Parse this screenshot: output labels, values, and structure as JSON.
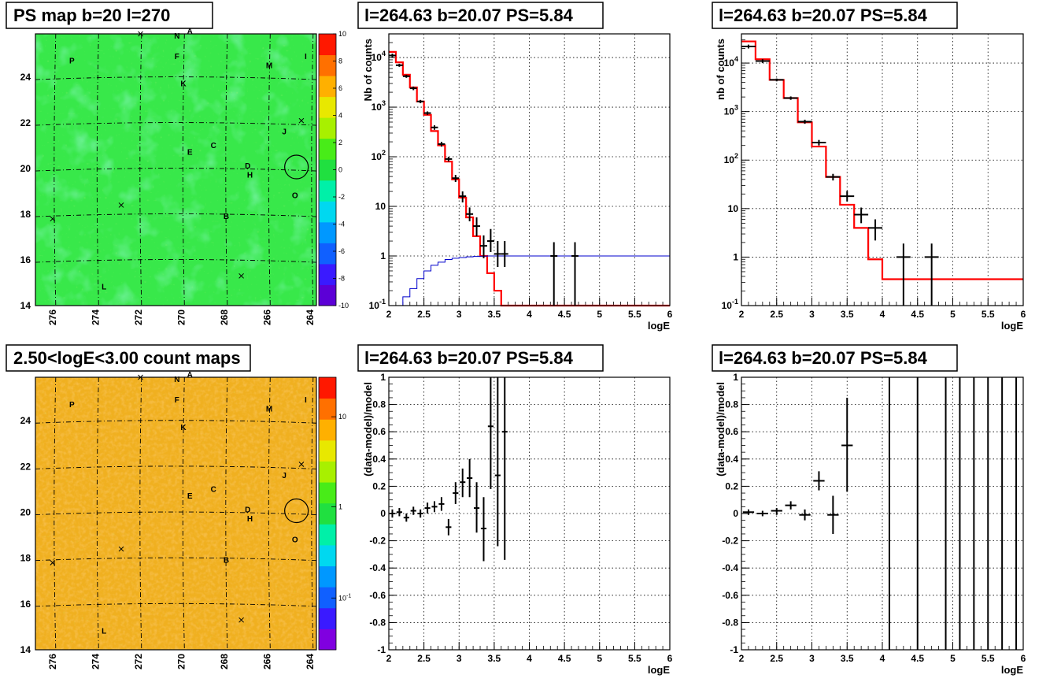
{
  "colors": {
    "model": "#ff0000",
    "exposure": "#0000cc",
    "data": "#000000"
  },
  "panels": {
    "p1": {
      "title": "PS map b=20 l=270"
    },
    "p2": {
      "title": "l=264.63 b=20.07 PS=5.84"
    },
    "p3": {
      "title": "l=264.63 b=20.07 PS=5.84"
    },
    "p4": {
      "title": "2.50<logE<3.00 count maps"
    },
    "p5": {
      "title": "l=264.63 b=20.07 PS=5.84"
    },
    "p6": {
      "title": "l=264.63 b=20.07 PS=5.84"
    }
  },
  "chart_data": [
    {
      "id": "p1",
      "type": "heatmap",
      "title": "PS map b=20 l=270",
      "x_ticks": [
        "276",
        "274",
        "272",
        "270",
        "268",
        "266",
        "264"
      ],
      "y_ticks": [
        "14",
        "16",
        "18",
        "20",
        "22",
        "24"
      ],
      "xlim": [
        276.8,
        263.7
      ],
      "ylim": [
        14,
        25.9
      ],
      "colorbar": {
        "scale": "linear",
        "range": [
          -10,
          10
        ],
        "ticks": [
          "10",
          "8",
          "6",
          "4",
          "2",
          "0",
          "-2",
          "-4",
          "-6",
          "-8",
          "-10"
        ],
        "palette": [
          "#5c00d6",
          "#3a1aff",
          "#1060ff",
          "#0098ff",
          "#00d8f0",
          "#00f0a8",
          "#20e040",
          "#48ec18",
          "#a8f000",
          "#e8e800",
          "#ffb000",
          "#ff7000",
          "#ff1800"
        ]
      },
      "sources": [
        {
          "name": "A",
          "l": 269.6,
          "b": 25.9
        },
        {
          "name": "N",
          "l": 270.2,
          "b": 25.7
        },
        {
          "name": "F",
          "l": 270.2,
          "b": 24.8
        },
        {
          "name": "P",
          "l": 275.1,
          "b": 24.6
        },
        {
          "name": "M",
          "l": 265.9,
          "b": 24.4
        },
        {
          "name": "I",
          "l": 264.2,
          "b": 24.8
        },
        {
          "name": "K",
          "l": 269.9,
          "b": 23.6
        },
        {
          "name": "J",
          "l": 265.2,
          "b": 21.5
        },
        {
          "name": "C",
          "l": 268.5,
          "b": 20.9
        },
        {
          "name": "E",
          "l": 269.6,
          "b": 20.6
        },
        {
          "name": "D",
          "l": 266.9,
          "b": 20.0
        },
        {
          "name": "H",
          "l": 266.8,
          "b": 19.6
        },
        {
          "name": "O",
          "l": 264.7,
          "b": 18.7
        },
        {
          "name": "B",
          "l": 267.9,
          "b": 17.8
        },
        {
          "name": "L",
          "l": 273.6,
          "b": 14.7
        }
      ],
      "crosses": [
        {
          "l": 271.9,
          "b": 25.9
        },
        {
          "l": 264.4,
          "b": 22.1
        },
        {
          "l": 272.8,
          "b": 18.4
        },
        {
          "l": 276.0,
          "b": 17.8
        },
        {
          "l": 267.2,
          "b": 15.3
        }
      ],
      "circle": {
        "l": 264.63,
        "b": 20.07
      }
    },
    {
      "id": "p2",
      "type": "line",
      "title": "l=264.63 b=20.07 PS=5.84",
      "xlabel": "logE",
      "ylabel": "Nb of counts",
      "xlim": [
        2,
        6
      ],
      "ylim": [
        0.1,
        30000
      ],
      "yscale": "log",
      "x_ticks": [
        "2",
        "2.5",
        "3",
        "3.5",
        "4",
        "4.5",
        "5",
        "5.5",
        "6"
      ],
      "y_ticks": [
        {
          "v": 0.1,
          "label": "10^-1"
        },
        {
          "v": 1,
          "label": "1"
        },
        {
          "v": 10,
          "label": "10"
        },
        {
          "v": 100,
          "label": "10^2"
        },
        {
          "v": 1000,
          "label": "10^3"
        },
        {
          "v": 10000,
          "label": "10^4"
        }
      ],
      "series": [
        {
          "role": "model",
          "edges": [
            2.0,
            2.1,
            2.2,
            2.3,
            2.4,
            2.5,
            2.6,
            2.7,
            2.8,
            2.9,
            3.0,
            3.1,
            3.2,
            3.3,
            3.4,
            3.5,
            3.6,
            3.7,
            3.8,
            3.9,
            4.0,
            4.1,
            6.0
          ],
          "values": [
            13000,
            8000,
            4500,
            2500,
            1300,
            700,
            330,
            170,
            80,
            35,
            15,
            6,
            2.5,
            1,
            0.45,
            0.2,
            0.1,
            0.1,
            0.1,
            0.1,
            0.1,
            0.1
          ]
        },
        {
          "role": "exposure",
          "edges": [
            2.0,
            2.1,
            2.2,
            2.3,
            2.4,
            2.5,
            2.6,
            2.7,
            2.8,
            2.9,
            3.0,
            3.1,
            3.2,
            3.3,
            3.4,
            3.5,
            3.6,
            3.7,
            3.8,
            3.9,
            4.0,
            6.0
          ],
          "values": [
            0.08,
            0.1,
            0.15,
            0.22,
            0.35,
            0.5,
            0.65,
            0.75,
            0.85,
            0.9,
            0.93,
            0.96,
            0.98,
            0.99,
            1,
            1,
            1,
            1,
            1,
            1,
            1
          ]
        },
        {
          "role": "data",
          "points": [
            {
              "x": 2.05,
              "y": 11000,
              "xe": 0.05,
              "lo": 10000,
              "hi": 12000
            },
            {
              "x": 2.15,
              "y": 7000,
              "xe": 0.05,
              "lo": 6500,
              "hi": 7500
            },
            {
              "x": 2.25,
              "y": 4200,
              "xe": 0.05,
              "lo": 3900,
              "hi": 4500
            },
            {
              "x": 2.35,
              "y": 2400,
              "xe": 0.05,
              "lo": 2200,
              "hi": 2600
            },
            {
              "x": 2.45,
              "y": 1300,
              "xe": 0.05,
              "lo": 1200,
              "hi": 1400
            },
            {
              "x": 2.55,
              "y": 760,
              "xe": 0.05,
              "lo": 700,
              "hi": 820
            },
            {
              "x": 2.65,
              "y": 390,
              "xe": 0.05,
              "lo": 350,
              "hi": 430
            },
            {
              "x": 2.75,
              "y": 180,
              "xe": 0.05,
              "lo": 160,
              "hi": 200
            },
            {
              "x": 2.85,
              "y": 90,
              "xe": 0.05,
              "lo": 80,
              "hi": 100
            },
            {
              "x": 2.95,
              "y": 37,
              "xe": 0.05,
              "lo": 31,
              "hi": 43
            },
            {
              "x": 3.05,
              "y": 16,
              "xe": 0.05,
              "lo": 12,
              "hi": 20
            },
            {
              "x": 3.15,
              "y": 7,
              "xe": 0.05,
              "lo": 5,
              "hi": 9.5
            },
            {
              "x": 3.25,
              "y": 4,
              "xe": 0.05,
              "lo": 2.5,
              "hi": 6
            },
            {
              "x": 3.35,
              "y": 1.6,
              "xe": 0.05,
              "lo": 0.9,
              "hi": 2.6
            },
            {
              "x": 3.45,
              "y": 2,
              "xe": 0.05,
              "lo": 1.2,
              "hi": 3.5
            },
            {
              "x": 3.55,
              "y": 1.1,
              "xe": 0.05,
              "lo": 0.6,
              "hi": 2
            },
            {
              "x": 3.65,
              "y": 1.1,
              "xe": 0.05,
              "lo": 0.6,
              "hi": 2
            },
            {
              "x": 4.35,
              "y": 1,
              "xe": 0.05,
              "lo": 0.1,
              "hi": 1.9
            },
            {
              "x": 4.65,
              "y": 1,
              "xe": 0.05,
              "lo": 0.1,
              "hi": 1.9
            }
          ]
        }
      ]
    },
    {
      "id": "p3",
      "type": "line",
      "title": "l=264.63 b=20.07 PS=5.84",
      "xlabel": "logE",
      "ylabel": "nb of counts",
      "xlim": [
        2,
        6
      ],
      "ylim": [
        0.1,
        40000
      ],
      "yscale": "log",
      "x_ticks": [
        "2",
        "2.5",
        "3",
        "3.5",
        "4",
        "4.5",
        "5",
        "5.5",
        "6"
      ],
      "y_ticks": [
        {
          "v": 0.1,
          "label": "10^-1"
        },
        {
          "v": 1,
          "label": "1"
        },
        {
          "v": 10,
          "label": "10"
        },
        {
          "v": 100,
          "label": "10^2"
        },
        {
          "v": 1000,
          "label": "10^3"
        },
        {
          "v": 10000,
          "label": "10^4"
        }
      ],
      "series": [
        {
          "role": "model",
          "edges": [
            2.0,
            2.2,
            2.4,
            2.6,
            2.8,
            3.0,
            3.2,
            3.4,
            3.6,
            3.8,
            4.0,
            6.0
          ],
          "values": [
            28000,
            12000,
            4500,
            1900,
            600,
            190,
            45,
            12,
            4,
            0.9,
            0.35
          ]
        },
        {
          "role": "data",
          "points": [
            {
              "x": 2.1,
              "y": 22000,
              "xe": 0.1,
              "lo": 20000,
              "hi": 24000
            },
            {
              "x": 2.3,
              "y": 11000,
              "xe": 0.1,
              "lo": 10000,
              "hi": 12000
            },
            {
              "x": 2.5,
              "y": 4500,
              "xe": 0.1,
              "lo": 4200,
              "hi": 4800
            },
            {
              "x": 2.7,
              "y": 1900,
              "xe": 0.1,
              "lo": 1750,
              "hi": 2050
            },
            {
              "x": 2.9,
              "y": 620,
              "xe": 0.1,
              "lo": 560,
              "hi": 680
            },
            {
              "x": 3.1,
              "y": 230,
              "xe": 0.1,
              "lo": 200,
              "hi": 260
            },
            {
              "x": 3.3,
              "y": 45,
              "xe": 0.1,
              "lo": 38,
              "hi": 52
            },
            {
              "x": 3.5,
              "y": 18,
              "xe": 0.1,
              "lo": 14,
              "hi": 23
            },
            {
              "x": 3.7,
              "y": 7.5,
              "xe": 0.1,
              "lo": 5,
              "hi": 10.5
            },
            {
              "x": 3.9,
              "y": 4,
              "xe": 0.1,
              "lo": 2.2,
              "hi": 6
            },
            {
              "x": 4.3,
              "y": 1,
              "xe": 0.1,
              "lo": 0.1,
              "hi": 1.9
            },
            {
              "x": 4.7,
              "y": 1,
              "xe": 0.1,
              "lo": 0.1,
              "hi": 1.9
            }
          ]
        }
      ]
    },
    {
      "id": "p4",
      "type": "heatmap",
      "title": "2.50<logE<3.00 count maps",
      "x_ticks": [
        "276",
        "274",
        "272",
        "270",
        "268",
        "266",
        "264"
      ],
      "y_ticks": [
        "14",
        "16",
        "18",
        "20",
        "22",
        "24"
      ],
      "xlim": [
        276.8,
        263.7
      ],
      "ylim": [
        14,
        25.9
      ],
      "colorbar": {
        "scale": "log",
        "ticks": [
          "10",
          "1",
          "10^-1"
        ],
        "palette": [
          "#8000e0",
          "#3a1aff",
          "#1060ff",
          "#0098ff",
          "#00d8f0",
          "#00f0a8",
          "#20e040",
          "#48ec18",
          "#a8f000",
          "#e8e800",
          "#ffb000",
          "#ff7000",
          "#ff1800"
        ]
      },
      "sources_ref": "p1"
    },
    {
      "id": "p5",
      "type": "scatter",
      "title": "l=264.63 b=20.07 PS=5.84",
      "xlabel": "logE",
      "ylabel": "(data-model)/model",
      "xlim": [
        2,
        6
      ],
      "ylim": [
        -1,
        1
      ],
      "x_ticks": [
        "2",
        "2.5",
        "3",
        "3.5",
        "4",
        "4.5",
        "5",
        "5.5",
        "6"
      ],
      "y_ticks": [
        "-1",
        "-0.8",
        "-0.6",
        "-0.4",
        "-0.2",
        "0",
        "0.2",
        "0.4",
        "0.6",
        "0.8",
        "1"
      ],
      "series": [
        {
          "role": "data",
          "points": [
            {
              "x": 2.05,
              "y": 0.0,
              "xe": 0.04,
              "lo": -0.03,
              "hi": 0.03
            },
            {
              "x": 2.15,
              "y": 0.01,
              "xe": 0.04,
              "lo": -0.02,
              "hi": 0.04
            },
            {
              "x": 2.25,
              "y": -0.03,
              "xe": 0.04,
              "lo": -0.06,
              "hi": 0.0
            },
            {
              "x": 2.35,
              "y": 0.02,
              "xe": 0.04,
              "lo": -0.01,
              "hi": 0.05
            },
            {
              "x": 2.45,
              "y": 0.0,
              "xe": 0.04,
              "lo": -0.03,
              "hi": 0.03
            },
            {
              "x": 2.55,
              "y": 0.04,
              "xe": 0.04,
              "lo": 0.0,
              "hi": 0.08
            },
            {
              "x": 2.65,
              "y": 0.05,
              "xe": 0.04,
              "lo": 0.01,
              "hi": 0.09
            },
            {
              "x": 2.75,
              "y": 0.07,
              "xe": 0.04,
              "lo": 0.02,
              "hi": 0.12
            },
            {
              "x": 2.85,
              "y": -0.1,
              "xe": 0.04,
              "lo": -0.16,
              "hi": -0.04
            },
            {
              "x": 2.95,
              "y": 0.15,
              "xe": 0.04,
              "lo": 0.07,
              "hi": 0.23
            },
            {
              "x": 3.05,
              "y": 0.23,
              "xe": 0.04,
              "lo": 0.12,
              "hi": 0.33
            },
            {
              "x": 3.15,
              "y": 0.26,
              "xe": 0.04,
              "lo": 0.12,
              "hi": 0.4
            },
            {
              "x": 3.25,
              "y": 0.04,
              "xe": 0.04,
              "lo": -0.14,
              "hi": 0.23
            },
            {
              "x": 3.35,
              "y": -0.11,
              "xe": 0.04,
              "lo": -0.35,
              "hi": 0.12
            },
            {
              "x": 3.45,
              "y": 0.64,
              "xe": 0.04,
              "lo": 0.18,
              "hi": 1.0
            },
            {
              "x": 3.55,
              "y": 0.28,
              "xe": 0.04,
              "lo": -0.24,
              "hi": 1.0
            },
            {
              "x": 3.65,
              "y": 0.6,
              "xe": 0.04,
              "lo": -0.34,
              "hi": 1.0
            }
          ]
        }
      ]
    },
    {
      "id": "p6",
      "type": "scatter",
      "title": "l=264.63 b=20.07 PS=5.84",
      "xlabel": "logE",
      "ylabel": "(data-model)/model",
      "xlim": [
        2,
        6
      ],
      "ylim": [
        -1,
        1
      ],
      "x_ticks": [
        "2",
        "2.5",
        "3",
        "3.5",
        "4",
        "4.5",
        "5",
        "5.5",
        "6"
      ],
      "y_ticks": [
        "-1",
        "-0.8",
        "-0.6",
        "-0.4",
        "-0.2",
        "0",
        "0.2",
        "0.4",
        "0.6",
        "0.8",
        "1"
      ],
      "series": [
        {
          "role": "data",
          "points": [
            {
              "x": 2.1,
              "y": 0.01,
              "xe": 0.08,
              "lo": -0.01,
              "hi": 0.03
            },
            {
              "x": 2.3,
              "y": 0.0,
              "xe": 0.08,
              "lo": -0.02,
              "hi": 0.02
            },
            {
              "x": 2.5,
              "y": 0.02,
              "xe": 0.08,
              "lo": -0.01,
              "hi": 0.04
            },
            {
              "x": 2.7,
              "y": 0.06,
              "xe": 0.08,
              "lo": 0.03,
              "hi": 0.09
            },
            {
              "x": 2.9,
              "y": -0.01,
              "xe": 0.08,
              "lo": -0.05,
              "hi": 0.03
            },
            {
              "x": 3.1,
              "y": 0.24,
              "xe": 0.08,
              "lo": 0.17,
              "hi": 0.31
            },
            {
              "x": 3.3,
              "y": -0.01,
              "xe": 0.08,
              "lo": -0.15,
              "hi": 0.13
            },
            {
              "x": 3.5,
              "y": 0.5,
              "xe": 0.08,
              "lo": 0.16,
              "hi": 0.85
            },
            {
              "x": 4.1,
              "y": 0,
              "xe": 0,
              "lo": -1,
              "hi": 1
            },
            {
              "x": 4.5,
              "y": 0,
              "xe": 0,
              "lo": -1,
              "hi": 1
            },
            {
              "x": 4.9,
              "y": 0,
              "xe": 0,
              "lo": -1,
              "hi": 1
            },
            {
              "x": 5.1,
              "y": 0,
              "xe": 0,
              "lo": -1,
              "hi": 1
            },
            {
              "x": 5.3,
              "y": 0,
              "xe": 0,
              "lo": -1,
              "hi": 1
            },
            {
              "x": 5.5,
              "y": 0,
              "xe": 0,
              "lo": -1,
              "hi": 1
            },
            {
              "x": 5.7,
              "y": 0,
              "xe": 0,
              "lo": -1,
              "hi": 1
            },
            {
              "x": 5.9,
              "y": 0,
              "xe": 0,
              "lo": -1,
              "hi": 1
            }
          ]
        }
      ]
    }
  ]
}
